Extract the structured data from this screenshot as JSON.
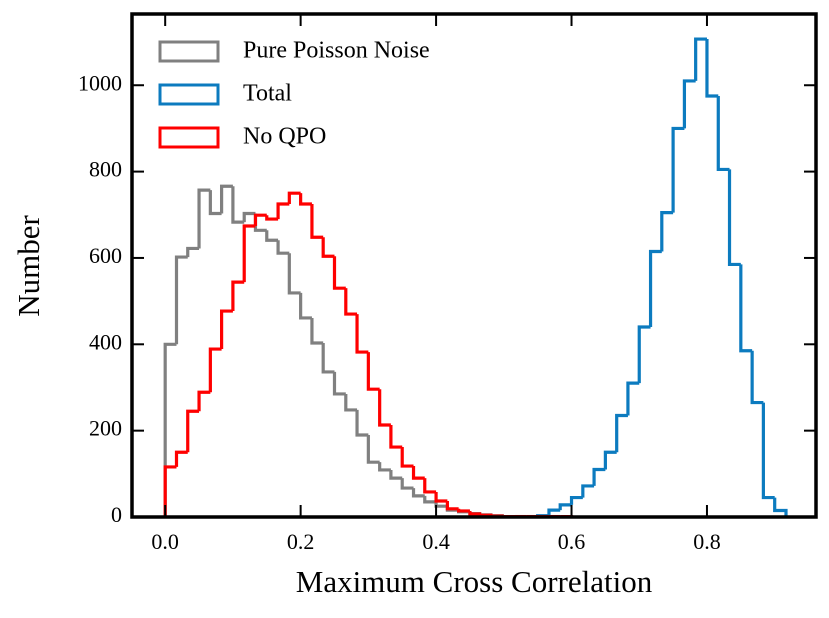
{
  "chart_data": {
    "type": "histogram",
    "xlabel": "Maximum Cross Correlation",
    "ylabel": "Number",
    "xlim": [
      -0.049,
      0.961
    ],
    "ylim": [
      0,
      1165
    ],
    "xticks": [
      {
        "value": 0,
        "label": "0.0"
      },
      0.2,
      0.4,
      0.6,
      0.8
    ],
    "yticks": [
      0,
      200,
      400,
      600,
      800,
      1000
    ],
    "legend": "upper left",
    "series": [
      {
        "name": "Pure Poisson Noise",
        "color": "#808080",
        "bins": [
          0,
          0.0167,
          0.0333,
          0.05,
          0.0667,
          0.0833,
          0.1,
          0.1167,
          0.1333,
          0.15,
          0.1667,
          0.1833,
          0.2,
          0.2167,
          0.2333,
          0.25,
          0.2667,
          0.2833,
          0.3,
          0.3167,
          0.3333,
          0.35,
          0.3667,
          0.3833,
          0.4,
          0.4167,
          0.4333,
          0.45,
          0.4667,
          0.4833,
          0.5,
          0.5167
        ],
        "values": [
          400,
          602,
          622,
          757,
          703,
          766,
          683,
          703,
          664,
          641,
          611,
          519,
          461,
          403,
          336,
          285,
          248,
          190,
          127,
          109,
          90,
          67,
          49,
          35,
          25,
          16,
          12,
          8,
          5,
          3,
          1
        ]
      },
      {
        "name": "Total",
        "color": "#0c7bbf",
        "bins": [
          0.55,
          0.5667,
          0.5833,
          0.6,
          0.6167,
          0.6333,
          0.65,
          0.6667,
          0.6833,
          0.7,
          0.7167,
          0.7333,
          0.75,
          0.7667,
          0.7833,
          0.8,
          0.8167,
          0.8333,
          0.85,
          0.8667,
          0.8833,
          0.9,
          0.9167
        ],
        "values": [
          3,
          16,
          28,
          45,
          72,
          110,
          150,
          235,
          310,
          440,
          615,
          705,
          900,
          1010,
          1107,
          975,
          805,
          585,
          385,
          265,
          45,
          15
        ]
      },
      {
        "name": "No QPO",
        "color": "#ff0000",
        "bins": [
          0,
          0.0167,
          0.0333,
          0.05,
          0.0667,
          0.0833,
          0.1,
          0.1167,
          0.1333,
          0.15,
          0.1667,
          0.1833,
          0.2,
          0.2167,
          0.2333,
          0.25,
          0.2667,
          0.2833,
          0.3,
          0.3167,
          0.3333,
          0.35,
          0.3667,
          0.3833,
          0.4,
          0.4167,
          0.4333,
          0.45,
          0.4667,
          0.4833,
          0.5,
          0.5167,
          0.5333,
          0.55,
          0.5667,
          0.5833,
          0.6
        ],
        "values": [
          116,
          150,
          245,
          289,
          389,
          477,
          544,
          674,
          699,
          690,
          725,
          750,
          725,
          648,
          604,
          530,
          470,
          382,
          296,
          213,
          162,
          118,
          90,
          58,
          37,
          19,
          14,
          7,
          4,
          2,
          1,
          1,
          1,
          1,
          1,
          1
        ]
      }
    ]
  }
}
